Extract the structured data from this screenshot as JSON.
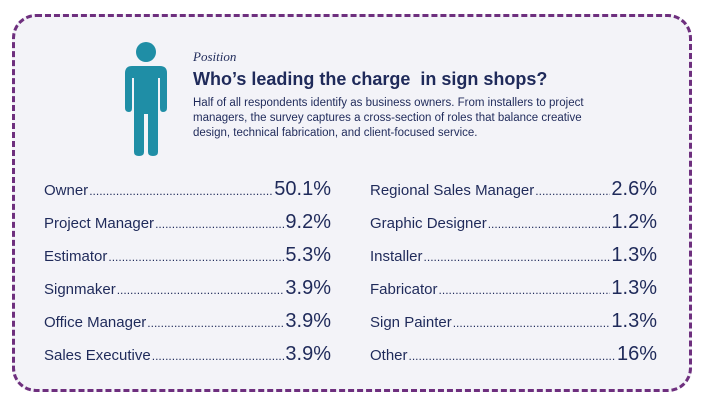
{
  "header": {
    "kicker": "Position",
    "title": "Who’s leading the charge  in sign shops?",
    "description": "Half of all respondents identify as business owners. From installers to project managers, the survey captures a cross-section of roles that balance creative design, technical fabrication, and client-focused service."
  },
  "icon": "person-icon",
  "colors": {
    "border": "#6e2f7e",
    "background": "#f3f3f8",
    "icon": "#1f8ea6",
    "text": "#1f2a5a"
  },
  "chart_data": {
    "type": "table",
    "rows": [
      {
        "role": "Owner",
        "value": "50.1%"
      },
      {
        "role": "Project Manager",
        "value": "9.2%"
      },
      {
        "role": "Estimator",
        "value": "5.3%"
      },
      {
        "role": "Signmaker",
        "value": "3.9%"
      },
      {
        "role": "Office Manager",
        "value": "3.9%"
      },
      {
        "role": "Sales Executive",
        "value": "3.9%"
      },
      {
        "role": "Regional Sales Manager",
        "value": "2.6%"
      },
      {
        "role": "Graphic Designer",
        "value": "1.2%"
      },
      {
        "role": "Installer",
        "value": "1.3%"
      },
      {
        "role": "Fabricator",
        "value": "1.3%"
      },
      {
        "role": "Sign Painter",
        "value": "1.3%"
      },
      {
        "role": "Other",
        "value": "16%"
      }
    ]
  }
}
